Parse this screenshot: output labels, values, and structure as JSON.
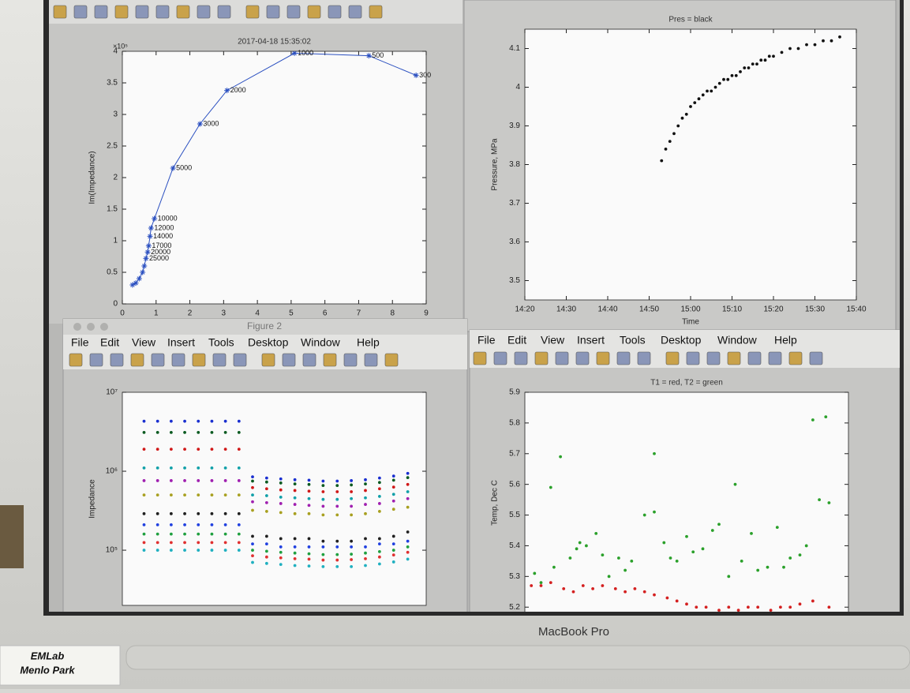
{
  "windows": {
    "figure2_title": "Figure 2",
    "menu": [
      "File",
      "Edit",
      "View",
      "Insert",
      "Tools",
      "Desktop",
      "Window",
      "Help"
    ]
  },
  "chart_data": [
    {
      "type": "line",
      "title": "2017-04-18 15:35:02",
      "ylabel": "Im(Impedance)",
      "y_scale_label": "×10⁵",
      "color": "#2a4fc0",
      "x": [
        0.3,
        0.4,
        0.5,
        0.6,
        0.65,
        0.7,
        0.75,
        0.78,
        0.82,
        0.85,
        0.95,
        1.5,
        2.3,
        3.1,
        5.1,
        7.3,
        8.7
      ],
      "values": [
        0.3,
        0.33,
        0.4,
        0.5,
        0.6,
        0.72,
        0.82,
        0.92,
        1.07,
        1.2,
        1.35,
        2.15,
        2.85,
        3.38,
        3.97,
        3.93,
        3.62
      ],
      "point_labels": [
        null,
        null,
        null,
        null,
        null,
        "25000",
        "20000",
        "17000",
        "14000",
        "12000",
        "10000",
        "5000",
        "3000",
        "2000",
        "1000",
        "500",
        "300"
      ],
      "xlim": [
        0,
        9
      ],
      "ylim": [
        0,
        4
      ],
      "xticks": [
        0,
        1,
        2,
        3,
        4,
        5,
        6,
        7,
        8,
        9
      ],
      "yticks": [
        0,
        0.5,
        1,
        1.5,
        2,
        2.5,
        3,
        3.5,
        4
      ]
    },
    {
      "type": "scatter",
      "title": "Pres = black",
      "xlabel": "Time",
      "ylabel": "Pressure, MPa",
      "x": [
        "14:53",
        "14:54",
        "14:55",
        "14:56",
        "14:57",
        "14:58",
        "14:59",
        "15:00",
        "15:01",
        "15:02",
        "15:03",
        "15:04",
        "15:05",
        "15:06",
        "15:07",
        "15:08",
        "15:09",
        "15:10",
        "15:11",
        "15:12",
        "15:13",
        "15:14",
        "15:15",
        "15:16",
        "15:17",
        "15:18",
        "15:19",
        "15:20",
        "15:22",
        "15:24",
        "15:26",
        "15:28",
        "15:30",
        "15:32",
        "15:34",
        "15:36"
      ],
      "series": [
        {
          "color": "#111111",
          "values": [
            3.81,
            3.84,
            3.86,
            3.88,
            3.9,
            3.92,
            3.93,
            3.95,
            3.96,
            3.97,
            3.98,
            3.99,
            3.99,
            4.0,
            4.01,
            4.02,
            4.02,
            4.03,
            4.03,
            4.04,
            4.05,
            4.05,
            4.06,
            4.06,
            4.07,
            4.07,
            4.08,
            4.08,
            4.09,
            4.1,
            4.1,
            4.11,
            4.11,
            4.12,
            4.12,
            4.13
          ]
        }
      ],
      "xlim": [
        "14:20",
        "15:40"
      ],
      "ylim": [
        3.45,
        4.15
      ],
      "xticks": [
        "14:20",
        "14:30",
        "14:40",
        "14:50",
        "15:00",
        "15:10",
        "15:20",
        "15:30",
        "15:40"
      ],
      "yticks": [
        3.5,
        3.6,
        3.7,
        3.8,
        3.9,
        4,
        4.1
      ]
    },
    {
      "type": "scatter",
      "ylabel": "Impedance",
      "log": true,
      "x": [
        2,
        3.25,
        4.5,
        5.75,
        7,
        8.25,
        9.5,
        10.75,
        12,
        13.3,
        14.6,
        15.9,
        17.2,
        18.5,
        19.8,
        21.1,
        22.4,
        23.7,
        25,
        26.3
      ],
      "series": [
        {
          "color": "#1a2fd0",
          "values": [
            4300000,
            4300000,
            4300000,
            4300000,
            4300000,
            4300000,
            4300000,
            4300000,
            850000,
            820000,
            800000,
            780000,
            770000,
            750000,
            750000,
            760000,
            780000,
            820000,
            870000,
            940000
          ]
        },
        {
          "color": "#0a5a20",
          "values": [
            3100000,
            3100000,
            3100000,
            3100000,
            3100000,
            3100000,
            3100000,
            3100000,
            750000,
            730000,
            710000,
            690000,
            680000,
            660000,
            660000,
            670000,
            690000,
            720000,
            770000,
            830000
          ]
        },
        {
          "color": "#d01818",
          "values": [
            1900000,
            1900000,
            1900000,
            1900000,
            1900000,
            1900000,
            1900000,
            1900000,
            620000,
            600000,
            580000,
            570000,
            560000,
            550000,
            550000,
            550000,
            570000,
            600000,
            630000,
            680000
          ]
        },
        {
          "color": "#10a0a8",
          "values": [
            1100000,
            1100000,
            1100000,
            1100000,
            1100000,
            1100000,
            1100000,
            1100000,
            500000,
            490000,
            470000,
            460000,
            450000,
            440000,
            440000,
            450000,
            460000,
            480000,
            510000,
            550000
          ]
        },
        {
          "color": "#a020b0",
          "values": [
            760000,
            760000,
            760000,
            760000,
            760000,
            760000,
            760000,
            760000,
            410000,
            400000,
            390000,
            380000,
            370000,
            360000,
            360000,
            360000,
            380000,
            390000,
            420000,
            450000
          ]
        },
        {
          "color": "#a8a020",
          "values": [
            500000,
            500000,
            500000,
            500000,
            500000,
            500000,
            500000,
            500000,
            320000,
            310000,
            300000,
            290000,
            290000,
            280000,
            280000,
            280000,
            290000,
            310000,
            330000,
            350000
          ]
        },
        {
          "color": "#202020",
          "values": [
            290000,
            290000,
            290000,
            290000,
            290000,
            290000,
            290000,
            290000,
            150000,
            150000,
            140000,
            140000,
            140000,
            130000,
            130000,
            130000,
            140000,
            140000,
            150000,
            170000
          ]
        },
        {
          "color": "#2040e0",
          "values": [
            210000,
            210000,
            210000,
            210000,
            210000,
            210000,
            210000,
            210000,
            120000,
            120000,
            110000,
            110000,
            110000,
            110000,
            110000,
            110000,
            110000,
            120000,
            120000,
            130000
          ]
        },
        {
          "color": "#20a040",
          "values": [
            160000,
            160000,
            160000,
            160000,
            160000,
            160000,
            160000,
            160000,
            100000,
            97000,
            94000,
            92000,
            90000,
            88000,
            88000,
            89000,
            92000,
            96000,
            100000,
            110000
          ]
        },
        {
          "color": "#e03030",
          "values": [
            125000,
            125000,
            125000,
            125000,
            125000,
            125000,
            125000,
            125000,
            85000,
            82000,
            80000,
            78000,
            77000,
            75000,
            75000,
            76000,
            78000,
            82000,
            87000,
            94000
          ]
        },
        {
          "color": "#20b0c0",
          "values": [
            100000,
            100000,
            100000,
            100000,
            100000,
            100000,
            100000,
            100000,
            70000,
            68000,
            66000,
            64000,
            63000,
            62000,
            62000,
            62000,
            64000,
            67000,
            71000,
            77000
          ]
        }
      ],
      "xlim": [
        0,
        28
      ],
      "ylim": [
        20000,
        10000000
      ],
      "yticks": [
        {
          "value": 100000,
          "label": "10⁵"
        },
        {
          "value": 1000000,
          "label": "10⁶"
        },
        {
          "value": 10000000,
          "label": "10⁷"
        }
      ]
    },
    {
      "type": "scatter",
      "title": "T1 = red, T2 = green",
      "ylabel": "Temp, Dec C",
      "series": [
        {
          "color": "#d42020",
          "x": [
            2,
            5,
            8,
            12,
            15,
            18,
            21,
            24,
            28,
            31,
            34,
            37,
            40,
            44,
            47,
            50,
            53,
            56,
            60,
            63,
            66,
            69,
            72,
            76,
            79,
            82,
            85,
            89,
            94
          ],
          "values": [
            5.27,
            5.27,
            5.28,
            5.26,
            5.25,
            5.27,
            5.26,
            5.27,
            5.26,
            5.25,
            5.26,
            5.25,
            5.24,
            5.23,
            5.22,
            5.21,
            5.2,
            5.2,
            5.19,
            5.2,
            5.19,
            5.2,
            5.2,
            5.19,
            5.2,
            5.2,
            5.21,
            5.22,
            5.2
          ]
        },
        {
          "color": "#2aa02a",
          "x": [
            3,
            5,
            8,
            9,
            11,
            14,
            16,
            17,
            19,
            22,
            24,
            26,
            29,
            31,
            33,
            37,
            40,
            40,
            43,
            45,
            47,
            50,
            52,
            55,
            58,
            60,
            63,
            65,
            67,
            70,
            72,
            75,
            78,
            80,
            82,
            85,
            87,
            89,
            91,
            93,
            94
          ],
          "values": [
            5.31,
            5.28,
            5.59,
            5.33,
            5.69,
            5.36,
            5.39,
            5.41,
            5.4,
            5.44,
            5.37,
            5.3,
            5.36,
            5.32,
            5.35,
            5.5,
            5.51,
            5.7,
            5.41,
            5.36,
            5.35,
            5.43,
            5.38,
            5.39,
            5.45,
            5.47,
            5.3,
            5.6,
            5.35,
            5.44,
            5.32,
            5.33,
            5.46,
            5.33,
            5.36,
            5.37,
            5.4,
            5.81,
            5.55,
            5.82,
            5.54
          ]
        }
      ],
      "xlim": [
        0,
        100
      ],
      "ylim": [
        5.18,
        5.9
      ],
      "yticks": [
        5.2,
        5.3,
        5.4,
        5.5,
        5.6,
        5.7,
        5.8,
        5.9
      ]
    }
  ],
  "laptop_label": "MacBook Pro",
  "sticker": [
    "EMLab",
    "Menlo Park"
  ]
}
